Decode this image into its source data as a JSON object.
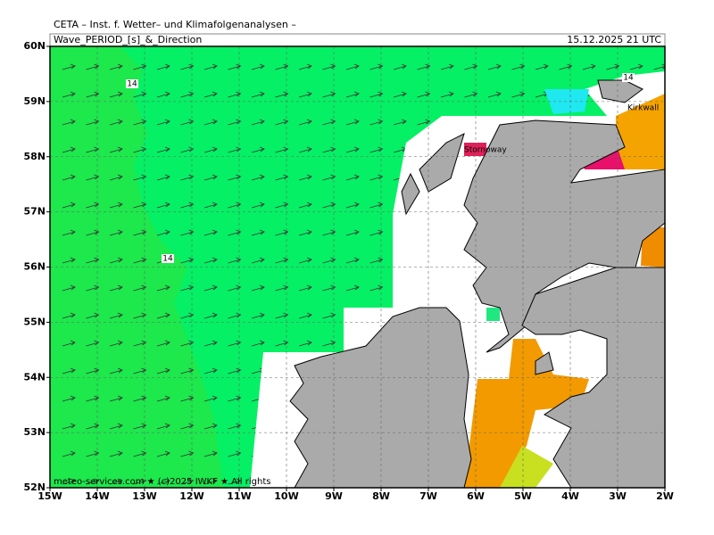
{
  "header": {
    "title": "CETA – Inst. f. Wetter– und Klimafolgenanalysen –",
    "subtitle": "Wave_PERIOD_[s]_&_Direction",
    "datetime": "15.12.2025  21 UTC"
  },
  "axes": {
    "lon_labels": [
      "15W",
      "14W",
      "13W",
      "12W",
      "11W",
      "10W",
      "9W",
      "8W",
      "7W",
      "6W",
      "5W",
      "4W",
      "3W",
      "2W"
    ],
    "lat_labels": [
      "60N",
      "59N",
      "58N",
      "57N",
      "56N",
      "55N",
      "54N",
      "53N",
      "52N"
    ]
  },
  "places": [
    "Stornoway",
    "Kirkwall"
  ],
  "contour_labels": [
    "14",
    "14",
    "14"
  ],
  "footer": "meteo-services.com ★ (c)2025 IWKF ★ All rights"
}
